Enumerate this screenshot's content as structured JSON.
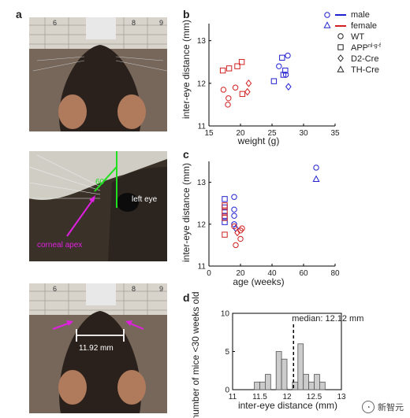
{
  "panel_labels": {
    "a": "a",
    "b": "b",
    "c": "c",
    "d": "d"
  },
  "photos": {
    "top": {
      "ruler_numbers": [
        "6",
        "8",
        "9"
      ]
    },
    "middle": {
      "angle_label": "60°",
      "eye_label": "left eye",
      "apex_label": "corneal apex"
    },
    "bottom": {
      "ruler_numbers": [
        "6",
        "8",
        "9"
      ],
      "measurement_label": "11.92 mm"
    }
  },
  "legend": {
    "colors": [
      {
        "label": "male",
        "color": "#2020d0"
      },
      {
        "label": "female",
        "color": "#d02020"
      }
    ],
    "shapes": [
      {
        "label": "WT",
        "shape": "circle"
      },
      {
        "label": "APP",
        "superscript": "nl-g-f",
        "shape": "square"
      },
      {
        "label": "D2-Cre",
        "shape": "diamond"
      },
      {
        "label": "TH-Cre",
        "shape": "triangle"
      }
    ]
  },
  "chart_data": [
    {
      "panel": "b",
      "type": "scatter",
      "xlabel": "weight (g)",
      "ylabel": "inter-eye distance (mm)",
      "xlim": [
        15,
        35
      ],
      "ylim": [
        11,
        13.4
      ],
      "xticks": [
        "15",
        "20",
        "25",
        "30",
        "35"
      ],
      "yticks": [
        "11",
        "12",
        "13"
      ],
      "points": [
        {
          "x": 17.2,
          "y": 12.3,
          "sex": "female",
          "shape": "square"
        },
        {
          "x": 18.2,
          "y": 12.35,
          "sex": "female",
          "shape": "square"
        },
        {
          "x": 19.5,
          "y": 12.4,
          "sex": "female",
          "shape": "square"
        },
        {
          "x": 20.2,
          "y": 12.5,
          "sex": "female",
          "shape": "square"
        },
        {
          "x": 20.3,
          "y": 11.75,
          "sex": "female",
          "shape": "square"
        },
        {
          "x": 17.3,
          "y": 11.85,
          "sex": "female",
          "shape": "circle"
        },
        {
          "x": 18.1,
          "y": 11.65,
          "sex": "female",
          "shape": "circle"
        },
        {
          "x": 18.0,
          "y": 11.5,
          "sex": "female",
          "shape": "circle"
        },
        {
          "x": 19.2,
          "y": 11.9,
          "sex": "female",
          "shape": "circle"
        },
        {
          "x": 21.1,
          "y": 11.8,
          "sex": "female",
          "shape": "diamond"
        },
        {
          "x": 21.3,
          "y": 12.0,
          "sex": "female",
          "shape": "diamond"
        },
        {
          "x": 25.3,
          "y": 12.05,
          "sex": "male",
          "shape": "square"
        },
        {
          "x": 26.6,
          "y": 12.6,
          "sex": "male",
          "shape": "square"
        },
        {
          "x": 26.8,
          "y": 12.2,
          "sex": "male",
          "shape": "square"
        },
        {
          "x": 27.1,
          "y": 12.3,
          "sex": "male",
          "shape": "square"
        },
        {
          "x": 26.1,
          "y": 12.4,
          "sex": "male",
          "shape": "circle"
        },
        {
          "x": 27.5,
          "y": 12.65,
          "sex": "male",
          "shape": "circle"
        },
        {
          "x": 27.2,
          "y": 12.2,
          "sex": "male",
          "shape": "circle"
        },
        {
          "x": 27.6,
          "y": 11.92,
          "sex": "male",
          "shape": "diamond"
        }
      ]
    },
    {
      "panel": "c",
      "type": "scatter",
      "xlabel": "age (weeks)",
      "ylabel": "inter-eye distance (mm)",
      "xlim": [
        0,
        80
      ],
      "ylim": [
        11,
        13.5
      ],
      "xticks": [
        "0",
        "20",
        "40",
        "60",
        "80"
      ],
      "yticks": [
        "11",
        "12",
        "13"
      ],
      "points": [
        {
          "x": 10,
          "y": 12.6,
          "sex": "male",
          "shape": "square"
        },
        {
          "x": 10,
          "y": 12.4,
          "sex": "male",
          "shape": "square"
        },
        {
          "x": 10,
          "y": 12.2,
          "sex": "male",
          "shape": "square"
        },
        {
          "x": 10,
          "y": 12.05,
          "sex": "male",
          "shape": "square"
        },
        {
          "x": 10,
          "y": 12.45,
          "sex": "female",
          "shape": "square"
        },
        {
          "x": 10,
          "y": 12.3,
          "sex": "female",
          "shape": "square"
        },
        {
          "x": 10,
          "y": 12.15,
          "sex": "female",
          "shape": "square"
        },
        {
          "x": 10,
          "y": 11.75,
          "sex": "female",
          "shape": "square"
        },
        {
          "x": 16,
          "y": 12.65,
          "sex": "male",
          "shape": "circle"
        },
        {
          "x": 16,
          "y": 12.35,
          "sex": "male",
          "shape": "circle"
        },
        {
          "x": 16,
          "y": 12.2,
          "sex": "male",
          "shape": "circle"
        },
        {
          "x": 16,
          "y": 12.0,
          "sex": "male",
          "shape": "circle"
        },
        {
          "x": 17,
          "y": 11.9,
          "sex": "male",
          "shape": "diamond"
        },
        {
          "x": 16,
          "y": 11.95,
          "sex": "female",
          "shape": "circle"
        },
        {
          "x": 17,
          "y": 11.5,
          "sex": "female",
          "shape": "circle"
        },
        {
          "x": 18,
          "y": 11.8,
          "sex": "female",
          "shape": "diamond"
        },
        {
          "x": 20,
          "y": 11.85,
          "sex": "female",
          "shape": "circle"
        },
        {
          "x": 21,
          "y": 11.9,
          "sex": "female",
          "shape": "circle"
        },
        {
          "x": 20,
          "y": 11.65,
          "sex": "female",
          "shape": "circle"
        },
        {
          "x": 68,
          "y": 13.35,
          "sex": "male",
          "shape": "circle"
        },
        {
          "x": 68,
          "y": 13.08,
          "sex": "male",
          "shape": "triangle"
        }
      ]
    },
    {
      "panel": "d",
      "type": "bar",
      "xlabel": "inter-eye distance (mm)",
      "ylabel": "number of mice <30 weeks old",
      "xlim": [
        11,
        13
      ],
      "ylim": [
        0,
        10
      ],
      "xticks": [
        "11",
        "11.5",
        "12",
        "12.5",
        "13"
      ],
      "yticks": [
        "0",
        "5",
        "10"
      ],
      "bin_width": 0.1,
      "bin_starts": [
        11.4,
        11.5,
        11.6,
        11.7,
        11.8,
        11.9,
        12.0,
        12.1,
        12.2,
        12.3,
        12.4,
        12.5,
        12.6
      ],
      "counts": [
        1,
        1,
        2,
        0,
        5,
        4,
        0,
        1,
        6,
        2,
        1,
        2,
        1
      ],
      "median": 12.12,
      "median_label": "median: 12.12 mm"
    }
  ],
  "watermark": {
    "text": "新智元"
  }
}
